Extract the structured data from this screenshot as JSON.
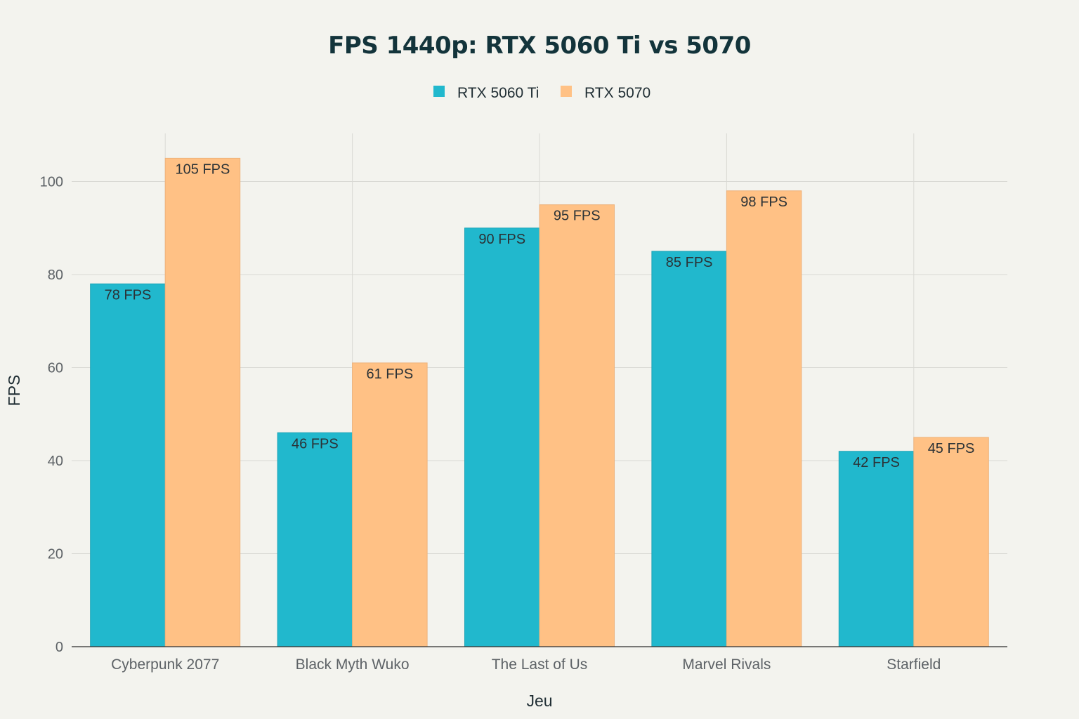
{
  "chart_data": {
    "type": "bar",
    "title": "FPS 1440p: RTX 5060 Ti vs 5070",
    "xlabel": "Jeu",
    "ylabel": "FPS",
    "ylim": [
      0,
      110
    ],
    "yticks": [
      0,
      20,
      40,
      60,
      80,
      100
    ],
    "categories": [
      "Cyberpunk 2077",
      "Black Myth Wuko",
      "The Last of Us",
      "Marvel Rivals",
      "Starfield"
    ],
    "series": [
      {
        "name": "RTX 5060 Ti",
        "color": "#21b8cd",
        "values": [
          78,
          46,
          90,
          85,
          42
        ],
        "labels": [
          "78 FPS",
          "46 FPS",
          "90 FPS",
          "85 FPS",
          "42 FPS"
        ]
      },
      {
        "name": "RTX 5070",
        "color": "#ffc185",
        "values": [
          105,
          61,
          95,
          98,
          45
        ],
        "labels": [
          "105 FPS",
          "61 FPS",
          "95 FPS",
          "98 FPS",
          "45 FPS"
        ]
      }
    ],
    "legend_position": "top-center",
    "grid": true
  }
}
